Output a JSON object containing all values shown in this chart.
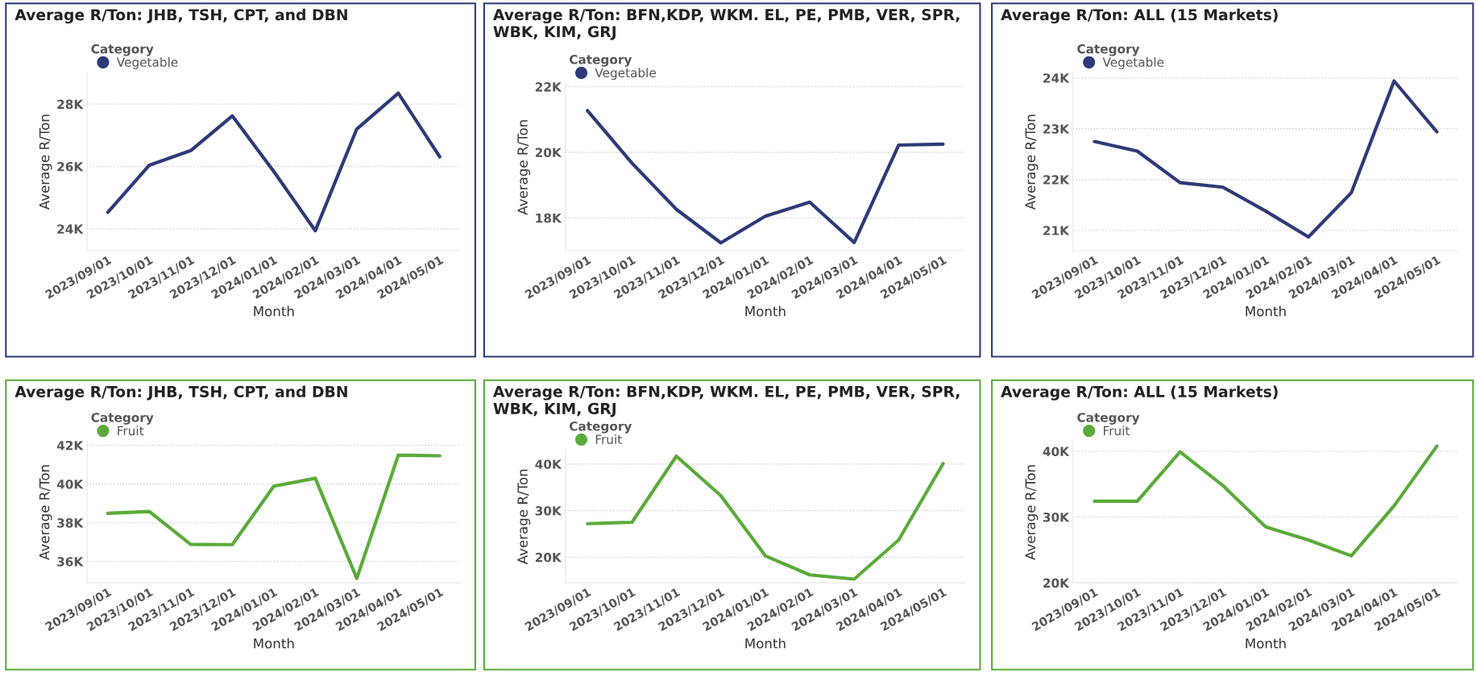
{
  "chart_data": [
    {
      "type": "line",
      "title": "Average R/Ton: JHB, TSH, CPT, and DBN",
      "xlabel": "Month",
      "ylabel": "Average R/Ton",
      "legend_title": "Category",
      "legend": "top left",
      "grid": "y",
      "categories": [
        "2023/09/01",
        "2023/10/01",
        "2023/11/01",
        "2023/12/01",
        "2024/01/01",
        "2024/02/01",
        "2024/03/01",
        "2024/04/01",
        "2024/05/01"
      ],
      "series": [
        {
          "name": "Vegetable",
          "color": "#2e3a78",
          "values": [
            24530,
            26040,
            26510,
            27620,
            25840,
            23940,
            27200,
            28350,
            26310
          ]
        }
      ],
      "ylim": [
        23300,
        29000
      ],
      "yticks": [
        {
          "value": 24000,
          "label": "24K"
        },
        {
          "value": 26000,
          "label": "26K"
        },
        {
          "value": 28000,
          "label": "28K"
        }
      ]
    },
    {
      "type": "line",
      "title": "Average R/Ton: BFN,KDP, WKM. EL, PE, PMB, VER, SPR, WBK, KIM, GRJ",
      "xlabel": "Month",
      "ylabel": "Average R/Ton",
      "legend_title": "Category",
      "legend": "top left",
      "grid": "y",
      "categories": [
        "2023/09/01",
        "2023/10/01",
        "2023/11/01",
        "2023/12/01",
        "2024/01/01",
        "2024/02/01",
        "2024/03/01",
        "2024/04/01",
        "2024/05/01"
      ],
      "series": [
        {
          "name": "Vegetable",
          "color": "#2e3a78",
          "values": [
            21270,
            19670,
            18260,
            17240,
            18050,
            18480,
            17250,
            20220,
            20250
          ]
        }
      ],
      "ylim": [
        17000,
        22100
      ],
      "yticks": [
        {
          "value": 18000,
          "label": "18K"
        },
        {
          "value": 20000,
          "label": "20K"
        },
        {
          "value": 22000,
          "label": "22K"
        }
      ]
    },
    {
      "type": "line",
      "title": "Average R/Ton: ALL (15 Markets)",
      "xlabel": "Month",
      "ylabel": "Average R/Ton",
      "legend_title": "Category",
      "legend": "top left",
      "grid": "y",
      "categories": [
        "2023/09/01",
        "2023/10/01",
        "2023/11/01",
        "2023/12/01",
        "2024/01/01",
        "2024/02/01",
        "2024/03/01",
        "2024/04/01",
        "2024/05/01"
      ],
      "series": [
        {
          "name": "Vegetable",
          "color": "#2e3a78",
          "values": [
            22750,
            22560,
            21940,
            21850,
            21380,
            20870,
            21740,
            23940,
            22940
          ]
        }
      ],
      "ylim": [
        20600,
        24100
      ],
      "yticks": [
        {
          "value": 21000,
          "label": "21K"
        },
        {
          "value": 22000,
          "label": "22K"
        },
        {
          "value": 23000,
          "label": "23K"
        },
        {
          "value": 24000,
          "label": "24K"
        }
      ]
    },
    {
      "type": "line",
      "title": "Average R/Ton: JHB, TSH, CPT, and DBN",
      "xlabel": "Month",
      "ylabel": "Average R/Ton",
      "legend_title": "Category",
      "legend": "top left",
      "grid": "y",
      "categories": [
        "2023/09/01",
        "2023/10/01",
        "2023/11/01",
        "2023/12/01",
        "2024/01/01",
        "2024/02/01",
        "2024/03/01",
        "2024/04/01",
        "2024/05/01"
      ],
      "series": [
        {
          "name": "Fruit",
          "color": "#5aab3a",
          "values": [
            38490,
            38580,
            36880,
            36870,
            39890,
            40300,
            35130,
            41490,
            41460
          ]
        }
      ],
      "ylim": [
        34900,
        42200
      ],
      "yticks": [
        {
          "value": 36000,
          "label": "36K"
        },
        {
          "value": 38000,
          "label": "38K"
        },
        {
          "value": 40000,
          "label": "40K"
        },
        {
          "value": 42000,
          "label": "42K"
        }
      ]
    },
    {
      "type": "line",
      "title": "Average R/Ton: BFN,KDP, WKM. EL, PE, PMB, VER, SPR, WBK, KIM, GRJ",
      "xlabel": "Month",
      "ylabel": "Average R/Ton",
      "legend_title": "Category",
      "legend": "top left",
      "grid": "y",
      "categories": [
        "2023/09/01",
        "2023/10/01",
        "2023/11/01",
        "2023/12/01",
        "2024/01/01",
        "2024/02/01",
        "2024/03/01",
        "2024/04/01",
        "2024/05/01"
      ],
      "series": [
        {
          "name": "Fruit",
          "color": "#5aab3a",
          "values": [
            27200,
            27500,
            41700,
            33200,
            20300,
            16200,
            15300,
            23700,
            40100
          ]
        }
      ],
      "ylim": [
        14500,
        43000
      ],
      "yticks": [
        {
          "value": 20000,
          "label": "20K"
        },
        {
          "value": 30000,
          "label": "30K"
        },
        {
          "value": 40000,
          "label": "40K"
        }
      ]
    },
    {
      "type": "line",
      "title": "Average R/Ton: ALL (15 Markets)",
      "xlabel": "Month",
      "ylabel": "Average R/Ton",
      "legend_title": "Category",
      "legend": "top left",
      "grid": "y",
      "categories": [
        "2023/09/01",
        "2023/10/01",
        "2023/11/01",
        "2023/12/01",
        "2024/01/01",
        "2024/02/01",
        "2024/03/01",
        "2024/04/01",
        "2024/05/01"
      ],
      "series": [
        {
          "name": "Fruit",
          "color": "#5aab3a",
          "values": [
            32400,
            32400,
            39900,
            34800,
            28500,
            26500,
            24100,
            31700,
            40800
          ]
        }
      ],
      "ylim": [
        20000,
        41500
      ],
      "yticks": [
        {
          "value": 20000,
          "label": "20K"
        },
        {
          "value": 30000,
          "label": "30K"
        },
        {
          "value": 40000,
          "label": "40K"
        }
      ]
    }
  ]
}
